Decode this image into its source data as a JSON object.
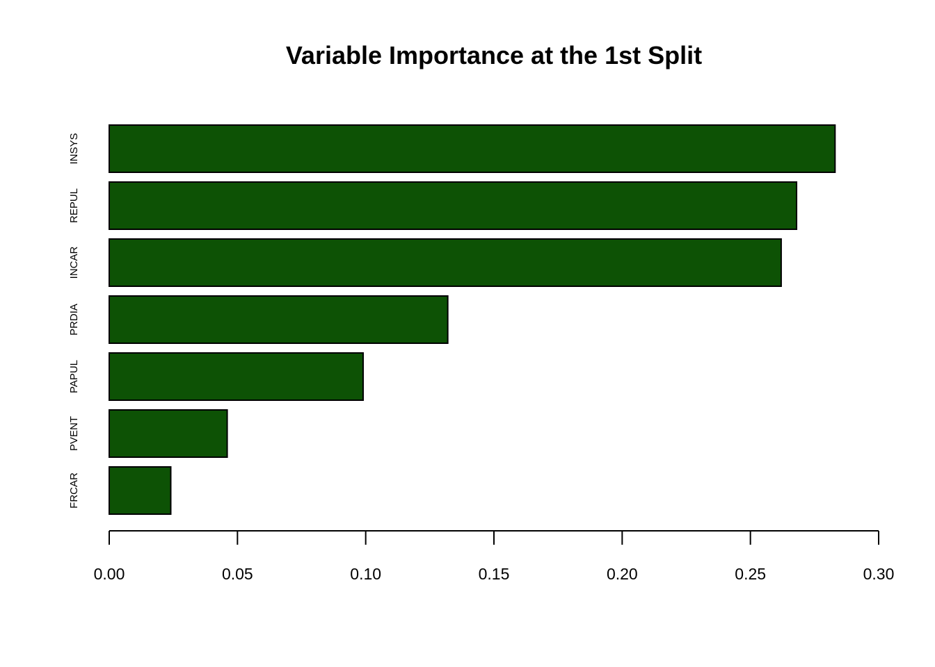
{
  "chart_data": {
    "type": "bar",
    "orientation": "horizontal",
    "title": "Variable Importance at the 1st Split",
    "xlabel": "",
    "ylabel": "",
    "categories": [
      "INSYS",
      "REPUL",
      "INCAR",
      "PRDIA",
      "PAPUL",
      "PVENT",
      "FRCAR"
    ],
    "values": [
      0.283,
      0.268,
      0.262,
      0.132,
      0.099,
      0.046,
      0.024
    ],
    "xlim": [
      0,
      0.3
    ],
    "xticks": [
      0,
      0.05,
      0.1,
      0.15,
      0.2,
      0.25,
      0.3
    ],
    "xtick_labels": [
      "0.00",
      "0.05",
      "0.10",
      "0.15",
      "0.20",
      "0.25",
      "0.30"
    ],
    "grid": false,
    "legend": "none",
    "colors": {
      "bar_fill": "#0d5205",
      "bar_stroke": "#000000",
      "axis": "#000000",
      "background": "#ffffff"
    }
  }
}
